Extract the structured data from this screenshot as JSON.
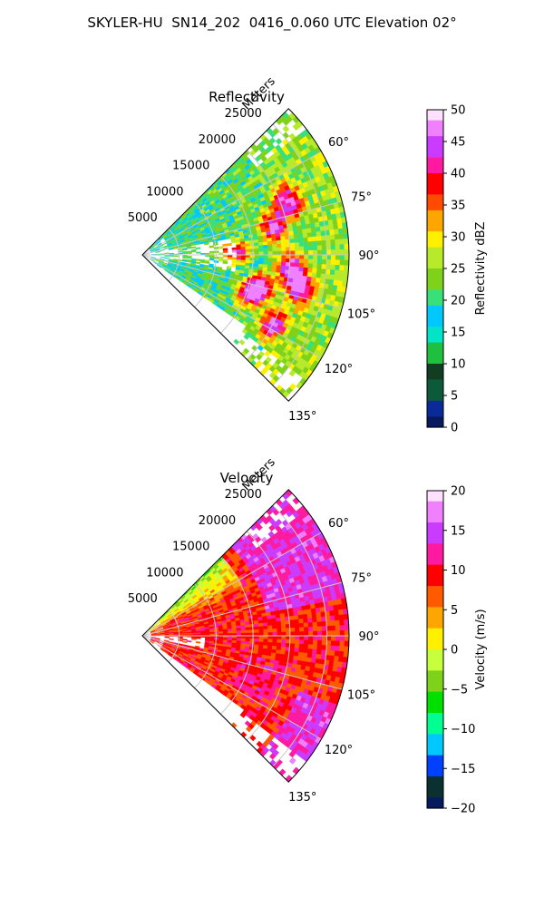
{
  "title": "SKYLER-HU  SN14_202  0416_0.060 UTC Elevation 02°",
  "range_axis_label": "Meters",
  "colors": {
    "reflectivity_stops": [
      "#081a5e",
      "#0a2a9a",
      "#0d5a3a",
      "#123d23",
      "#1fbf3f",
      "#00e5c8",
      "#00c8ff",
      "#39e07a",
      "#7fd21a",
      "#b7ea2a",
      "#fff000",
      "#ffa500",
      "#ff4a00",
      "#ff0000",
      "#ff1aa0",
      "#c93cff",
      "#f080ff",
      "#ffe0ff"
    ],
    "velocity_stops": [
      "#081a5e",
      "#0a3030",
      "#0040ff",
      "#00c8ff",
      "#00ff90",
      "#00e000",
      "#7fd21a",
      "#c8ff3c",
      "#fff000",
      "#ffa500",
      "#ff5a00",
      "#ff0000",
      "#ff1aa0",
      "#c93cff",
      "#f080ff",
      "#ffe0ff"
    ],
    "grid": "#c8c8c8"
  },
  "chart_data": [
    {
      "type": "heatmap",
      "title": "Reflectivity",
      "projection": "polar sector",
      "angular_ticks": [
        "60°",
        "75°",
        "90°",
        "105°",
        "120°",
        "135°"
      ],
      "azimuth_range_deg": [
        45,
        135
      ],
      "radial_ticks": [
        "5000",
        "10000",
        "15000",
        "20000",
        "25000"
      ],
      "range_max_m": 28000,
      "radial_label": "Meters",
      "colorbar": {
        "label": "Reflectivity dBZ",
        "range": [
          0,
          50
        ],
        "ticks": [
          "0",
          "5",
          "10",
          "15",
          "20",
          "25",
          "30",
          "35",
          "40",
          "45",
          "50"
        ]
      }
    },
    {
      "type": "heatmap",
      "title": "Velocity",
      "projection": "polar sector",
      "angular_ticks": [
        "60°",
        "75°",
        "90°",
        "105°",
        "120°",
        "135°"
      ],
      "azimuth_range_deg": [
        45,
        135
      ],
      "radial_ticks": [
        "5000",
        "10000",
        "15000",
        "20000",
        "25000"
      ],
      "range_max_m": 28000,
      "radial_label": "Meters",
      "colorbar": {
        "label": "Velocity (m/s)",
        "range": [
          -20,
          20
        ],
        "ticks": [
          "−20",
          "−15",
          "−10",
          "−5",
          "0",
          "5",
          "10",
          "15",
          "20"
        ]
      }
    }
  ]
}
